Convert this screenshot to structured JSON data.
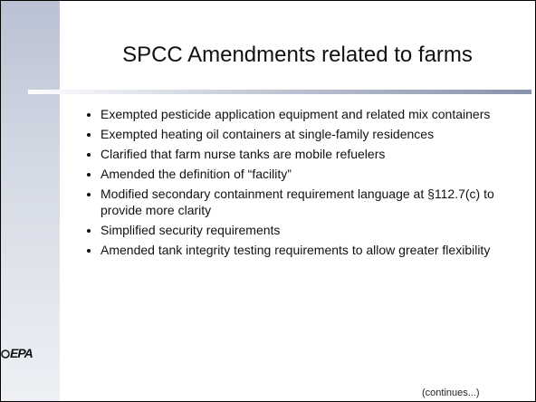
{
  "slide": {
    "title": "SPCC Amendments related to farms",
    "bullets": [
      "Exempted pesticide application equipment and related mix containers",
      "Exempted heating oil containers at single-family residences",
      "Clarified that farm nurse tanks are mobile refuelers",
      "Amended the definition of “facility”",
      "Modified secondary containment requirement language at §112.7(c) to provide more clarity",
      "Simplified security requirements",
      "Amended tank integrity testing requirements to allow greater flexibility"
    ],
    "logo": "EPA",
    "footer": "(continues...)"
  }
}
